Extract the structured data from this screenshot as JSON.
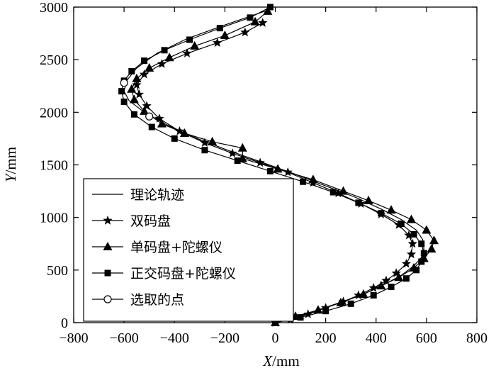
{
  "chart_data": {
    "type": "line",
    "xlabel": "X/mm",
    "ylabel": "Y/mm",
    "xlim": [
      -800,
      800
    ],
    "ylim": [
      0,
      3000
    ],
    "xticks": [
      "−800",
      "−600",
      "−400",
      "−200",
      "0",
      "200",
      "400",
      "600",
      "800"
    ],
    "yticks": [
      "0",
      "500",
      "1000",
      "1500",
      "2000",
      "2500",
      "3000"
    ],
    "legend_position": "bottom-left",
    "grid": false,
    "series": [
      {
        "name": "理论轨迹",
        "marker": "none",
        "points": [
          [
            0,
            0
          ],
          [
            120,
            80
          ],
          [
            230,
            170
          ],
          [
            340,
            260
          ],
          [
            430,
            360
          ],
          [
            500,
            450
          ],
          [
            550,
            540
          ],
          [
            580,
            620
          ],
          [
            590,
            700
          ],
          [
            585,
            790
          ],
          [
            560,
            880
          ],
          [
            500,
            980
          ],
          [
            420,
            1080
          ],
          [
            320,
            1190
          ],
          [
            200,
            1300
          ],
          [
            70,
            1420
          ],
          [
            -60,
            1530
          ],
          [
            -190,
            1640
          ],
          [
            -320,
            1760
          ],
          [
            -430,
            1880
          ],
          [
            -520,
            2000
          ],
          [
            -580,
            2110
          ],
          [
            -600,
            2200
          ],
          [
            -590,
            2300
          ],
          [
            -550,
            2420
          ],
          [
            -470,
            2560
          ],
          [
            -350,
            2700
          ],
          [
            -200,
            2830
          ],
          [
            -30,
            2970
          ]
        ]
      },
      {
        "name": "双码盘",
        "marker": "star",
        "points": [
          [
            0,
            0
          ],
          [
            60,
            30
          ],
          [
            130,
            80
          ],
          [
            200,
            140
          ],
          [
            270,
            200
          ],
          [
            330,
            260
          ],
          [
            390,
            330
          ],
          [
            440,
            400
          ],
          [
            480,
            470
          ],
          [
            520,
            560
          ],
          [
            540,
            650
          ],
          [
            545,
            750
          ],
          [
            530,
            830
          ],
          [
            490,
            930
          ],
          [
            420,
            1030
          ],
          [
            340,
            1130
          ],
          [
            250,
            1230
          ],
          [
            150,
            1330
          ],
          [
            50,
            1430
          ],
          [
            -60,
            1520
          ],
          [
            -170,
            1610
          ],
          [
            -280,
            1710
          ],
          [
            -380,
            1820
          ],
          [
            -460,
            1940
          ],
          [
            -510,
            2060
          ],
          [
            -540,
            2170
          ],
          [
            -550,
            2260
          ],
          [
            -520,
            2360
          ],
          [
            -450,
            2460
          ],
          [
            -350,
            2560
          ],
          [
            -230,
            2660
          ],
          [
            -120,
            2760
          ],
          [
            -50,
            2850
          ]
        ]
      },
      {
        "name": "单码盘+陀螺仪",
        "marker": "triangle",
        "points": [
          [
            0,
            0
          ],
          [
            80,
            60
          ],
          [
            170,
            120
          ],
          [
            260,
            190
          ],
          [
            350,
            270
          ],
          [
            420,
            350
          ],
          [
            490,
            430
          ],
          [
            550,
            520
          ],
          [
            590,
            610
          ],
          [
            620,
            700
          ],
          [
            630,
            780
          ],
          [
            600,
            880
          ],
          [
            540,
            980
          ],
          [
            460,
            1070
          ],
          [
            370,
            1160
          ],
          [
            270,
            1250
          ],
          [
            150,
            1360
          ],
          [
            10,
            1460
          ],
          [
            -130,
            1560
          ],
          [
            -130,
            1660
          ],
          [
            -250,
            1720
          ],
          [
            -360,
            1800
          ],
          [
            -450,
            1890
          ],
          [
            -520,
            2010
          ],
          [
            -560,
            2120
          ],
          [
            -570,
            2220
          ],
          [
            -550,
            2320
          ],
          [
            -500,
            2420
          ],
          [
            -420,
            2520
          ],
          [
            -320,
            2630
          ],
          [
            -200,
            2730
          ],
          [
            -80,
            2860
          ],
          [
            -30,
            2960
          ]
        ]
      },
      {
        "name": "正交码盘+陀螺仪",
        "marker": "square",
        "points": [
          [
            0,
            0
          ],
          [
            100,
            50
          ],
          [
            200,
            110
          ],
          [
            300,
            180
          ],
          [
            390,
            260
          ],
          [
            460,
            340
          ],
          [
            520,
            420
          ],
          [
            560,
            500
          ],
          [
            580,
            580
          ],
          [
            590,
            660
          ],
          [
            580,
            750
          ],
          [
            550,
            840
          ],
          [
            500,
            940
          ],
          [
            420,
            1040
          ],
          [
            330,
            1140
          ],
          [
            230,
            1240
          ],
          [
            110,
            1340
          ],
          [
            -20,
            1440
          ],
          [
            -150,
            1540
          ],
          [
            -280,
            1640
          ],
          [
            -400,
            1750
          ],
          [
            -490,
            1860
          ],
          [
            -560,
            1980
          ],
          [
            -600,
            2100
          ],
          [
            -610,
            2200
          ],
          [
            -600,
            2300
          ],
          [
            -570,
            2390
          ],
          [
            -520,
            2490
          ],
          [
            -440,
            2590
          ],
          [
            -340,
            2690
          ],
          [
            -220,
            2800
          ],
          [
            -100,
            2900
          ],
          [
            -20,
            3000
          ]
        ]
      },
      {
        "name": "选取的点",
        "marker": "circle",
        "points": [
          [
            -500,
            1960
          ],
          [
            -600,
            2280
          ]
        ]
      }
    ]
  }
}
